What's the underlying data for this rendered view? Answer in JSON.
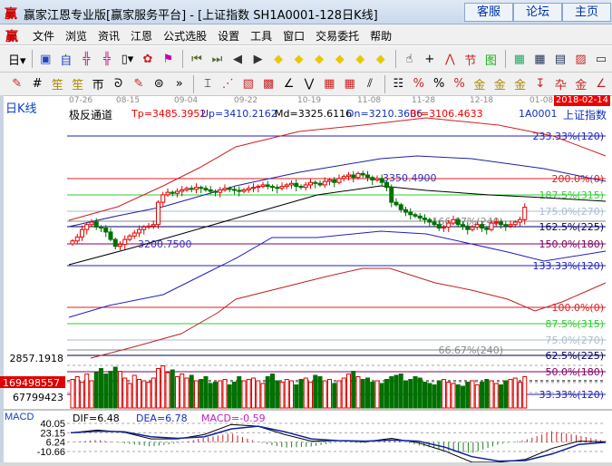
{
  "window": {
    "logo": "赢",
    "title": "赢家江恩专业版[赢家服务平台] - [上证指数  SH1A0001-128日K线]",
    "buttons": [
      "客服",
      "论坛",
      "主页"
    ]
  },
  "menu": {
    "logo": "赢",
    "items": [
      "文件",
      "浏览",
      "资讯",
      "江恩",
      "公式选股",
      "设置",
      "工具",
      "窗口",
      "交易委托",
      "帮助"
    ]
  },
  "toolbar1": [
    {
      "icon": "day-period-icon",
      "glyph": "日▾",
      "color": "#000"
    },
    {
      "sep": true
    },
    {
      "icon": "window-icon",
      "glyph": "▣",
      "color": "#2244cc"
    },
    {
      "icon": "self-select-icon",
      "glyph": "自",
      "color": "#2244cc"
    },
    {
      "icon": "chart3-icon",
      "glyph": "╬",
      "color": "#cc2288"
    },
    {
      "icon": "chart9-icon",
      "glyph": "╬",
      "color": "#cc2288"
    },
    {
      "icon": "candle-icon",
      "glyph": "▯▾",
      "color": "#000"
    },
    {
      "icon": "gann-icon",
      "glyph": "✿",
      "color": "#cc2222"
    },
    {
      "icon": "flag-icon",
      "glyph": "⚑",
      "color": "#cc00aa"
    },
    {
      "sep": true
    },
    {
      "icon": "first-icon",
      "glyph": "⏮",
      "color": "#556b2f"
    },
    {
      "icon": "last-icon",
      "glyph": "⏭",
      "color": "#556b2f"
    },
    {
      "icon": "left-icon",
      "glyph": "◀",
      "color": "#333"
    },
    {
      "icon": "right-icon",
      "glyph": "▶",
      "color": "#333"
    },
    {
      "icon": "zoom-left-icon",
      "glyph": "◆",
      "color": "#e8c800"
    },
    {
      "icon": "zoom-right-icon",
      "glyph": "◆",
      "color": "#e8c800"
    },
    {
      "icon": "zoom-in-icon",
      "glyph": "◆",
      "color": "#e8c800"
    },
    {
      "icon": "zoom-out-icon",
      "glyph": "◆",
      "color": "#e8c800"
    },
    {
      "icon": "expand-icon",
      "glyph": "◆",
      "color": "#e8c800"
    },
    {
      "icon": "vertical-icon",
      "glyph": "◆",
      "color": "#e8c800"
    },
    {
      "sep": true
    },
    {
      "icon": "hand-icon",
      "glyph": "☝",
      "color": "#000"
    },
    {
      "icon": "crosshair-icon",
      "glyph": "+",
      "color": "#000"
    },
    {
      "icon": "indicator-icon",
      "glyph": "⋀",
      "color": "#cc2222"
    },
    {
      "icon": "festival-icon",
      "glyph": "节",
      "color": "#cc2222"
    },
    {
      "icon": "chart-icon",
      "glyph": "图",
      "color": "#22aa22"
    },
    {
      "sep": true
    },
    {
      "icon": "calendar-icon",
      "glyph": "▦",
      "color": "#2a6"
    },
    {
      "icon": "calculator-icon",
      "glyph": "▦",
      "color": "#235"
    },
    {
      "icon": "notes-icon",
      "glyph": "▤",
      "color": "#235"
    },
    {
      "icon": "save-icon",
      "glyph": "▨",
      "color": "#c22"
    },
    {
      "icon": "more-icon",
      "glyph": "▭",
      "color": "#235"
    }
  ],
  "toolbar2": [
    {
      "icon": "pen-icon",
      "glyph": "✎",
      "color": "#c22"
    },
    {
      "icon": "grid-icon",
      "glyph": "#",
      "color": "#000"
    },
    {
      "icon": "gold-grid1-icon",
      "glyph": "笙",
      "color": "#a80"
    },
    {
      "icon": "gold-grid2-icon",
      "glyph": "笙",
      "color": "#a80"
    },
    {
      "icon": "f-grid-icon",
      "glyph": "帀",
      "color": "#000"
    },
    {
      "icon": "spiral-icon",
      "glyph": "ᘐ",
      "color": "#000"
    },
    {
      "icon": "pen2-icon",
      "glyph": "✎",
      "color": "#c22"
    },
    {
      "icon": "circle-icon",
      "glyph": "⊜",
      "color": "#000"
    },
    {
      "icon": "more-chevron-icon",
      "glyph": "»",
      "color": "#000"
    },
    {
      "sep": true
    },
    {
      "icon": "box-icon",
      "glyph": "⌶",
      "color": "#000"
    },
    {
      "icon": "fan-icon",
      "glyph": "⋰",
      "color": "#c22"
    },
    {
      "icon": "square-fan-icon",
      "glyph": "▧",
      "color": "#c22"
    },
    {
      "icon": "square-icon",
      "glyph": "▩",
      "color": "#c22"
    },
    {
      "icon": "angle-icon",
      "glyph": "∠",
      "color": "#000"
    },
    {
      "icon": "wave-icon",
      "glyph": "⋁",
      "color": "#000"
    },
    {
      "icon": "gann-grid-icon",
      "glyph": "▦",
      "color": "#c22"
    },
    {
      "icon": "gann-box-icon",
      "glyph": "▦",
      "color": "#c22"
    },
    {
      "icon": "parallel-icon",
      "glyph": "⫽",
      "color": "#000"
    },
    {
      "sep": true
    },
    {
      "icon": "table-icon",
      "glyph": "☷",
      "color": "#000"
    },
    {
      "icon": "percent-red-icon",
      "glyph": "%",
      "color": "#c22"
    },
    {
      "icon": "percent-icon",
      "glyph": "%",
      "color": "#000"
    },
    {
      "icon": "percent-line-icon",
      "glyph": "%",
      "color": "#c22"
    },
    {
      "icon": "gold-circle-icon",
      "glyph": "金",
      "color": "#a80"
    },
    {
      "icon": "gold-circle2-icon",
      "glyph": "金",
      "color": "#a80"
    },
    {
      "icon": "gold-line-icon",
      "glyph": "金",
      "color": "#a80"
    },
    {
      "icon": "arrow-icon",
      "glyph": "↧",
      "color": "#c22"
    },
    {
      "icon": "cross-line-icon",
      "glyph": "卆",
      "color": "#c22"
    },
    {
      "icon": "gold-icon",
      "glyph": "金",
      "color": "#c22"
    },
    {
      "icon": "slope-icon",
      "glyph": "∠",
      "color": "#c22"
    }
  ],
  "left_label": "日K线",
  "date_axis": [
    "07-26",
    "08-15",
    "09-04",
    "09-22",
    "10-19",
    "11-08",
    "11-28",
    "12-18",
    "01-08"
  ],
  "current_date": "2018-02-14",
  "header": {
    "indicator": "极反通道",
    "tp": "Tp=3485.3952",
    "up": "Up=3410.2162",
    "md": "Md=3325.6116",
    "dn": "Dn=3210.3606",
    "bt": "Bt=3106.4633",
    "code": "1A0001",
    "name": "上证指数"
  },
  "chart_data": {
    "type": "candlestick",
    "high_label": "3350.4900",
    "low_label": "3200.7500",
    "closes": [
      3212,
      3220,
      3235,
      3245,
      3250,
      3240,
      3238,
      3230,
      3215,
      3201,
      3205,
      3215,
      3222,
      3228,
      3235,
      3240,
      3242,
      3245,
      3290,
      3305,
      3310,
      3308,
      3312,
      3315,
      3318,
      3316,
      3320,
      3318,
      3315,
      3312,
      3310,
      3315,
      3318,
      3316,
      3314,
      3312,
      3315,
      3318,
      3320,
      3322,
      3325,
      3322,
      3320,
      3318,
      3322,
      3325,
      3328,
      3322,
      3320,
      3325,
      3330,
      3328,
      3325,
      3332,
      3335,
      3330,
      3338,
      3342,
      3345,
      3340,
      3348,
      3345,
      3340,
      3335,
      3338,
      3330,
      3320,
      3290,
      3285,
      3275,
      3270,
      3265,
      3262,
      3258,
      3255,
      3250,
      3245,
      3238,
      3240,
      3248,
      3255,
      3245,
      3242,
      3235,
      3240,
      3245,
      3238,
      3235,
      3248,
      3250,
      3245,
      3242,
      3245,
      3250,
      3255,
      3280
    ],
    "volumes_m": [
      210,
      230,
      190,
      250,
      200,
      260,
      290,
      250,
      270,
      300,
      270,
      220,
      180,
      240,
      210,
      200,
      190,
      220,
      290,
      310,
      260,
      280,
      230,
      250,
      220,
      240,
      200,
      210,
      230,
      180,
      190,
      200,
      210,
      170,
      190,
      230,
      200,
      210,
      220,
      200,
      180,
      230,
      250,
      200,
      190,
      210,
      200,
      170,
      210,
      220,
      190,
      240,
      230,
      200,
      210,
      180,
      200,
      220,
      250,
      270,
      230,
      210,
      220,
      190,
      200,
      180,
      210,
      230,
      240,
      250,
      200,
      210,
      230,
      220,
      190,
      180,
      170,
      200,
      210,
      190,
      180,
      170,
      160,
      190,
      200,
      170,
      190,
      210,
      200,
      180,
      170,
      200,
      210,
      220,
      190,
      230
    ],
    "pct_levels": [
      {
        "label": "233.33%(120)",
        "color": "#2020c0"
      },
      {
        "label": "200.0%(0)",
        "color": "#e02020"
      },
      {
        "label": "187.5%(315)",
        "color": "#33cc33"
      },
      {
        "label": "175.0%(270)",
        "color": "#aabbd0"
      },
      {
        "label": "166.67%(240)",
        "color": "#888888"
      },
      {
        "label": "162.5%(225)",
        "color": "#000060"
      },
      {
        "label": "150.0%(180)",
        "color": "#800060"
      },
      {
        "label": "133.33%(120)",
        "color": "#2020c0"
      },
      {
        "label": "100.0%(0)",
        "color": "#e02020"
      },
      {
        "label": "87.5%(315)",
        "color": "#33cc33"
      },
      {
        "label": "75.0%(270)",
        "color": "#aabbd0"
      },
      {
        "label": "66.67%(240)",
        "color": "#888888"
      },
      {
        "label": "62.5%(225)",
        "color": "#000060"
      },
      {
        "label": "50.0%(180)",
        "color": "#800060"
      },
      {
        "label": "33.33%(120)",
        "color": "#2020c0"
      }
    ],
    "price_axis": [
      "2857.1918"
    ],
    "volume_axis": [
      "169498557",
      "67799423"
    ],
    "macd": {
      "label": "MACD",
      "dif_label": "DIF=6.48",
      "dea_label": "DEA=6.78",
      "macd_label": "MACD=-0.59",
      "axis": [
        "40.05",
        "23.15",
        "6.24",
        "-10.66"
      ],
      "dif": [
        23,
        28,
        24,
        12,
        12,
        20,
        38,
        35,
        20,
        8,
        9,
        7,
        13,
        5,
        -10,
        -30,
        -30,
        -25,
        -5,
        8,
        7
      ],
      "dea": [
        23,
        26,
        25,
        16,
        13,
        16,
        30,
        35,
        25,
        12,
        9,
        8,
        10,
        8,
        -3,
        -20,
        -28,
        -27,
        -15,
        2,
        6
      ]
    },
    "colors": {
      "up": "#e00000",
      "down": "#007000"
    }
  }
}
